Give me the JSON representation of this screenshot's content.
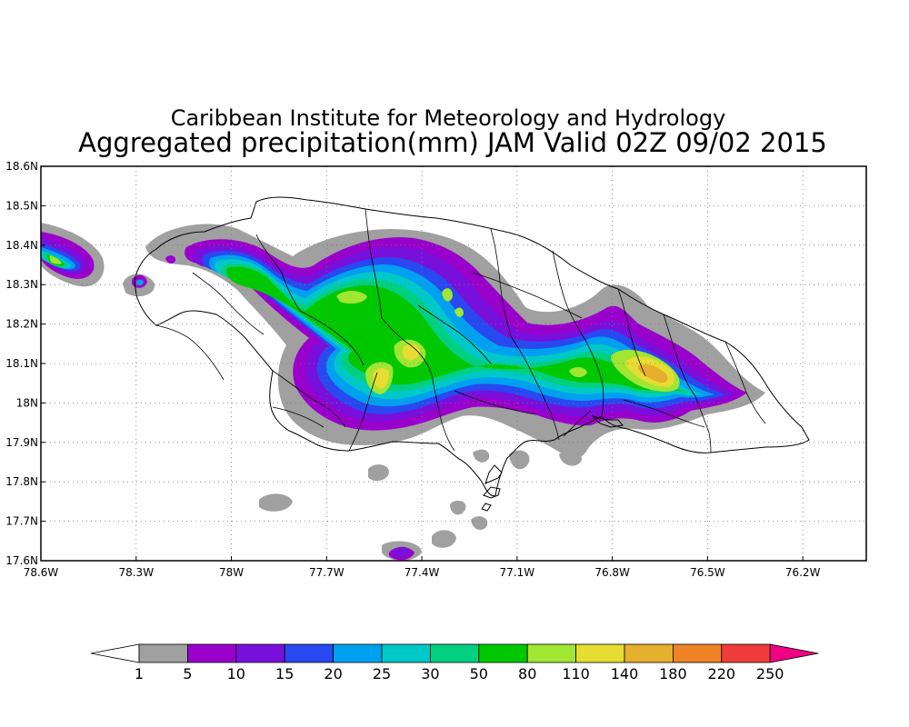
{
  "title": {
    "line1": "Caribbean Institute for Meteorology and Hydrology",
    "line2": "Aggregated precipitation(mm) JAM Valid 02Z 09/02 2015"
  },
  "axes": {
    "lon_range": [
      -78.6,
      -76.0
    ],
    "lat_range": [
      17.6,
      18.6
    ],
    "x_ticks": [
      {
        "value": -78.6,
        "label": "78.6W"
      },
      {
        "value": -78.3,
        "label": "78.3W"
      },
      {
        "value": -78.0,
        "label": "78W"
      },
      {
        "value": -77.7,
        "label": "77.7W"
      },
      {
        "value": -77.4,
        "label": "77.4W"
      },
      {
        "value": -77.1,
        "label": "77.1W"
      },
      {
        "value": -76.8,
        "label": "76.8W"
      },
      {
        "value": -76.5,
        "label": "76.5W"
      },
      {
        "value": -76.2,
        "label": "76.2W"
      }
    ],
    "y_ticks": [
      {
        "value": 18.6,
        "label": "18.6N"
      },
      {
        "value": 18.5,
        "label": "18.5N"
      },
      {
        "value": 18.4,
        "label": "18.4N"
      },
      {
        "value": 18.3,
        "label": "18.3N"
      },
      {
        "value": 18.2,
        "label": "18.2N"
      },
      {
        "value": 18.1,
        "label": "18.1N"
      },
      {
        "value": 18.0,
        "label": "18N"
      },
      {
        "value": 17.9,
        "label": "17.9N"
      },
      {
        "value": 17.8,
        "label": "17.8N"
      },
      {
        "value": 17.7,
        "label": "17.7N"
      },
      {
        "value": 17.6,
        "label": "17.6N"
      }
    ],
    "grid": true
  },
  "colorbar": {
    "levels": [
      "1",
      "5",
      "10",
      "15",
      "20",
      "25",
      "30",
      "50",
      "80",
      "110",
      "140",
      "180",
      "220",
      "250"
    ],
    "colors": [
      "#a0a0a0",
      "#9a00cc",
      "#7810dc",
      "#2848f0",
      "#00a0f0",
      "#00c8c8",
      "#00d080",
      "#00c800",
      "#a0e632",
      "#e6dc32",
      "#e6af2d",
      "#f08228",
      "#f03c3c",
      "#f00082"
    ]
  },
  "precip_areas": [
    {
      "name": "west-tip",
      "min_level_mm": 50,
      "peak_lon": -78.52,
      "peak_lat": 18.37
    },
    {
      "name": "north-central",
      "min_level_mm": 80,
      "peak_lon": -77.42,
      "peak_lat": 18.26
    },
    {
      "name": "central",
      "min_level_mm": 110,
      "peak_lon": -77.46,
      "peak_lat": 18.13
    },
    {
      "name": "central-south",
      "min_level_mm": 110,
      "peak_lon": -77.55,
      "peak_lat": 18.06
    },
    {
      "name": "east",
      "min_level_mm": 140,
      "peak_lon": -76.68,
      "peak_lat": 18.07
    },
    {
      "name": "south-offshore",
      "min_level_mm": 10,
      "peak_lon": -77.42,
      "peak_lat": 17.62
    }
  ]
}
